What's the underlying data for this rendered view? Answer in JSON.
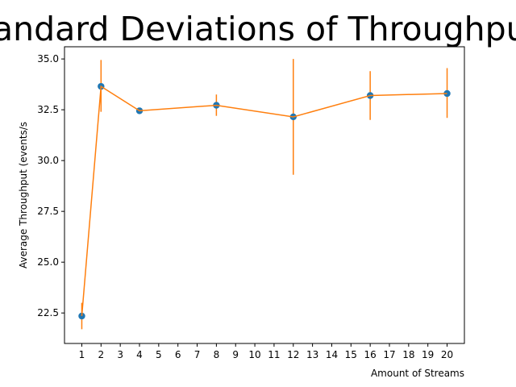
{
  "chart_data": {
    "type": "line",
    "title": "Standard Deviations of Throughputs",
    "xlabel": "Amount of Streams",
    "ylabel": "Average Throughput (events/s",
    "x_ticks": [
      "1",
      "2",
      "3",
      "4",
      "5",
      "6",
      "7",
      "8",
      "9",
      "10",
      "11",
      "12",
      "13",
      "14",
      "15",
      "16",
      "17",
      "18",
      "19",
      "20"
    ],
    "y_ticks": [
      "22.5",
      "25.0",
      "27.5",
      "30.0",
      "32.5",
      "35.0"
    ],
    "xlim": [
      0.1,
      20.9
    ],
    "ylim": [
      21.0,
      35.6
    ],
    "grid": false,
    "series": [
      {
        "x": [
          1,
          2,
          4,
          8,
          12,
          16,
          20
        ],
        "y": [
          22.35,
          33.65,
          32.45,
          32.72,
          32.15,
          33.2,
          33.3
        ],
        "yerr_low": [
          21.7,
          32.4,
          32.45,
          32.2,
          29.3,
          32.0,
          32.1
        ],
        "yerr_high": [
          23.0,
          34.95,
          32.45,
          33.25,
          35.0,
          34.4,
          34.55
        ]
      }
    ],
    "colors": {
      "marker": "#1f77b4",
      "line": "#ff7f0e",
      "errorbar": "#ff7f0e",
      "axes": "#000000"
    }
  }
}
